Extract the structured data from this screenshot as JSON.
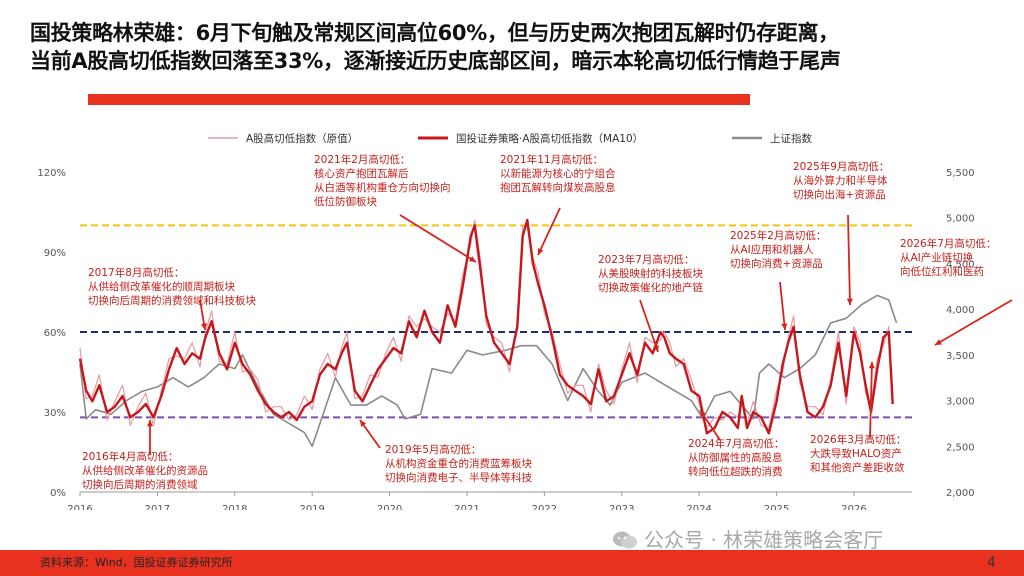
{
  "header": {
    "title_line1": "国投策略林荣雄：6月下旬触及常规区间高位60%，但与历史两次抱团瓦解时仍存距离，",
    "title_line2": "当前A股高切低指数回落至33%，逐渐接近历史底部区间，暗示本轮高切低行情趋于尾声"
  },
  "footer": {
    "source": "资料来源：Wind，国投证券证券研究所",
    "page_number": "4",
    "watermark": "公众号 · 林荣雄策略会客厅"
  },
  "colors": {
    "raw": "#e79aa0",
    "ma10": "#c8161d",
    "sse": "#8a8a8a",
    "line_top": "#f2c40f",
    "line_mid": "#1f2f6b",
    "line_low": "#7c4fb0",
    "accent": "#e8321f"
  },
  "chart_data": {
    "type": "line",
    "legend": [
      "A股高切低指数（原值）",
      "国投证券策略·A股高切低指数（MA10）",
      "上证指数"
    ],
    "legend_position": "top",
    "x_range": [
      2016,
      2026.75
    ],
    "x_ticks": [
      "2016",
      "2017",
      "2018",
      "2019",
      "2020",
      "2021",
      "2022",
      "2023",
      "2024",
      "2025",
      "2026"
    ],
    "y_left": {
      "range": [
        0,
        120
      ],
      "ticks": [
        "0%",
        "30%",
        "60%",
        "90%",
        "120%"
      ]
    },
    "y_right": {
      "range": [
        2000,
        5500
      ],
      "ticks": [
        "2,000",
        "2,500",
        "3,000",
        "3,500",
        "4,000",
        "4,500",
        "5,000",
        "5,500"
      ]
    },
    "reference_lines": [
      {
        "value": 100,
        "style": "dashed",
        "color": "#f2c40f"
      },
      {
        "value": 60,
        "style": "dashed",
        "color": "#1f2f6b"
      },
      {
        "value": 28,
        "style": "dashed",
        "color": "#7c4fb0"
      }
    ],
    "series": [
      {
        "name": "国投证券策略·A股高切低指数（MA10）",
        "axis": "left",
        "x": [
          2016.0,
          2016.08,
          2016.16,
          2016.25,
          2016.35,
          2016.45,
          2016.55,
          2016.65,
          2016.75,
          2016.85,
          2016.95,
          2017.05,
          2017.15,
          2017.25,
          2017.35,
          2017.45,
          2017.55,
          2017.62,
          2017.7,
          2017.8,
          2017.9,
          2018.0,
          2018.1,
          2018.2,
          2018.3,
          2018.4,
          2018.5,
          2018.6,
          2018.7,
          2018.8,
          2018.9,
          2019.0,
          2019.1,
          2019.2,
          2019.3,
          2019.38,
          2019.45,
          2019.55,
          2019.65,
          2019.75,
          2019.85,
          2019.95,
          2020.05,
          2020.15,
          2020.25,
          2020.35,
          2020.45,
          2020.55,
          2020.65,
          2020.75,
          2020.85,
          2020.95,
          2021.05,
          2021.1,
          2021.18,
          2021.25,
          2021.35,
          2021.45,
          2021.55,
          2021.65,
          2021.72,
          2021.78,
          2021.85,
          2021.92,
          2022.0,
          2022.1,
          2022.2,
          2022.3,
          2022.4,
          2022.5,
          2022.6,
          2022.7,
          2022.8,
          2022.9,
          2023.0,
          2023.1,
          2023.2,
          2023.3,
          2023.4,
          2023.5,
          2023.55,
          2023.62,
          2023.7,
          2023.8,
          2023.9,
          2024.0,
          2024.1,
          2024.2,
          2024.3,
          2024.4,
          2024.5,
          2024.55,
          2024.62,
          2024.7,
          2024.8,
          2024.9,
          2025.0,
          2025.08,
          2025.15,
          2025.22,
          2025.3,
          2025.4,
          2025.5,
          2025.6,
          2025.7,
          2025.8,
          2025.9,
          2026.0,
          2026.08,
          2026.15,
          2026.22,
          2026.3,
          2026.38,
          2026.45,
          2026.5
        ],
        "values": [
          50,
          38,
          34,
          40,
          30,
          32,
          36,
          28,
          30,
          33,
          28,
          36,
          46,
          54,
          48,
          52,
          50,
          58,
          64,
          52,
          46,
          56,
          48,
          44,
          38,
          33,
          30,
          28,
          30,
          27,
          32,
          34,
          44,
          48,
          46,
          52,
          56,
          38,
          34,
          40,
          46,
          50,
          54,
          52,
          64,
          58,
          68,
          60,
          56,
          70,
          62,
          78,
          96,
          100,
          82,
          66,
          56,
          52,
          48,
          62,
          96,
          102,
          86,
          78,
          70,
          58,
          44,
          40,
          38,
          36,
          33,
          46,
          34,
          36,
          44,
          52,
          44,
          56,
          52,
          60,
          58,
          52,
          50,
          48,
          38,
          36,
          22,
          24,
          30,
          28,
          24,
          36,
          24,
          30,
          28,
          22,
          34,
          48,
          56,
          62,
          44,
          30,
          28,
          32,
          40,
          56,
          36,
          60,
          52,
          40,
          30,
          46,
          58,
          60,
          33
        ]
      },
      {
        "name": "上证指数",
        "axis": "right",
        "x": [
          2016.0,
          2016.08,
          2016.2,
          2016.4,
          2016.6,
          2016.8,
          2017.0,
          2017.2,
          2017.4,
          2017.6,
          2017.8,
          2018.0,
          2018.1,
          2018.3,
          2018.5,
          2018.7,
          2018.9,
          2019.0,
          2019.2,
          2019.3,
          2019.5,
          2019.7,
          2019.9,
          2020.1,
          2020.2,
          2020.4,
          2020.55,
          2020.8,
          2021.0,
          2021.2,
          2021.5,
          2021.7,
          2021.9,
          2022.1,
          2022.3,
          2022.5,
          2022.7,
          2022.85,
          2023.0,
          2023.3,
          2023.5,
          2023.7,
          2023.9,
          2024.05,
          2024.2,
          2024.4,
          2024.6,
          2024.7,
          2024.78,
          2024.9,
          2025.1,
          2025.3,
          2025.5,
          2025.7,
          2025.9,
          2026.1,
          2026.3,
          2026.45,
          2026.55
        ],
        "values": [
          3400,
          2800,
          2900,
          2850,
          3000,
          3100,
          3150,
          3250,
          3150,
          3250,
          3400,
          3350,
          3500,
          3150,
          2850,
          2750,
          2650,
          2500,
          3000,
          3250,
          2950,
          2950,
          3050,
          2950,
          2800,
          2850,
          3350,
          3300,
          3550,
          3500,
          3550,
          3600,
          3600,
          3400,
          3000,
          3350,
          3100,
          2950,
          3200,
          3300,
          3200,
          3100,
          3000,
          2800,
          3050,
          3100,
          2900,
          2800,
          3300,
          3400,
          3250,
          3350,
          3500,
          3850,
          3900,
          4050,
          4150,
          4100,
          3850
        ]
      }
    ],
    "annotations": [
      {
        "date": "2016年4月高切低：",
        "lines": [
          "从供给侧改革催化的资源品",
          "切换向后周期的消费领域"
        ]
      },
      {
        "date": "2017年8月高切低：",
        "lines": [
          "从供给侧改革催化的顺周期板块",
          "切换向后周期的消费领域和科技板块"
        ]
      },
      {
        "date": "2019年5月高切低：",
        "lines": [
          "从机构资金重仓的消费蓝筹板块",
          "切换向消费电子、半导体等科技"
        ]
      },
      {
        "date": "2021年2月高切低：",
        "lines": [
          "核心资产抱团瓦解后",
          "从白酒等机构重仓方向切换向",
          "低位防御板块"
        ]
      },
      {
        "date": "2021年11月高切低：",
        "lines": [
          "以新能源为核心的宁组合",
          "抱团瓦解转向煤炭高股息"
        ]
      },
      {
        "date": "2023年7月高切低：",
        "lines": [
          "从美股映射的科技板块",
          "切换政策催化的地产链"
        ]
      },
      {
        "date": "2024年7月高切低：",
        "lines": [
          "从防御属性的高股息",
          "转向低位超跌的消费"
        ]
      },
      {
        "date": "2025年2月高切低：",
        "lines": [
          "从AI应用和机器人",
          "切换向消费+资源品"
        ]
      },
      {
        "date": "2025年9月高切低：",
        "lines": [
          "从海外算力和半导体",
          "切换向出海+资源品"
        ]
      },
      {
        "date": "2026年3月高切低：",
        "lines": [
          "大跌导致HALO资产",
          "和其他资产差距收敛"
        ]
      },
      {
        "date": "2026年7月高切低：",
        "lines": [
          "从AI产业链切换",
          "向低位红利和医药"
        ]
      }
    ]
  }
}
